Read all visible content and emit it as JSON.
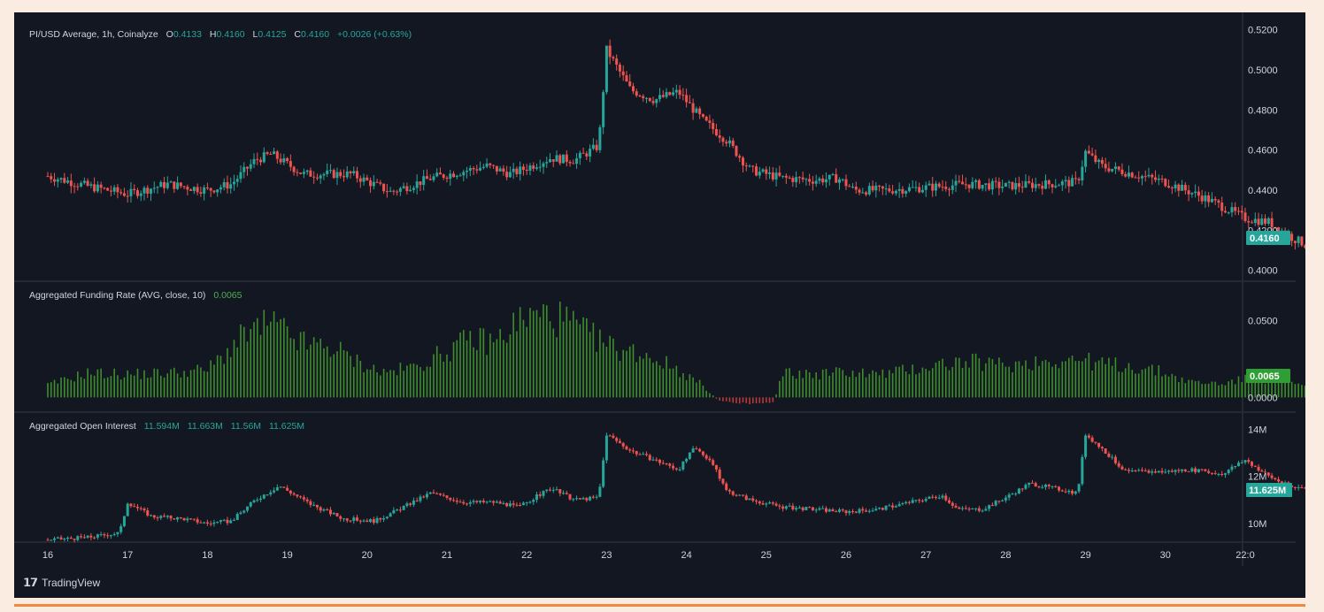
{
  "colors": {
    "up": "#26a69a",
    "down": "#ef5350",
    "funding_up": "#3e8e2c",
    "funding_down": "#b83a3a",
    "last_tag": "#26a69a",
    "funding_tag": "#2e9e35",
    "grid": "#2a2e39",
    "text": "#d1d4dc"
  },
  "brand": {
    "icon": "tradingview-logo-icon",
    "name": "TradingView"
  },
  "chart_data": [
    {
      "type": "candlestick",
      "title": "PI/USD Average, 1h, Coinalyze",
      "ohlc_label": {
        "o_key": "O",
        "o": "0.4133",
        "h_key": "H",
        "h": "0.4160",
        "l_key": "L",
        "l": "0.4125",
        "c_key": "C",
        "c": "0.4160",
        "change": "+0.0026 (+0.63%)"
      },
      "last_value_label": "0.4160",
      "ylim": [
        0.395,
        0.526
      ],
      "y_ticks": [
        "0.5200",
        "0.5000",
        "0.4800",
        "0.4600",
        "0.4400",
        "0.4200",
        "0.4000"
      ],
      "keypoints": [
        [
          0,
          0.447
        ],
        [
          0.5,
          0.442
        ],
        [
          1.0,
          0.438
        ],
        [
          1.5,
          0.443
        ],
        [
          2.0,
          0.44
        ],
        [
          2.3,
          0.443
        ],
        [
          2.6,
          0.455
        ],
        [
          2.8,
          0.458
        ],
        [
          3.2,
          0.448
        ],
        [
          3.8,
          0.448
        ],
        [
          4.3,
          0.439
        ],
        [
          4.8,
          0.446
        ],
        [
          5.5,
          0.452
        ],
        [
          5.8,
          0.448
        ],
        [
          6.3,
          0.456
        ],
        [
          6.6,
          0.455
        ],
        [
          6.9,
          0.462
        ],
        [
          7.0,
          0.51
        ],
        [
          7.3,
          0.49
        ],
        [
          7.6,
          0.485
        ],
        [
          7.9,
          0.489
        ],
        [
          8.2,
          0.475
        ],
        [
          8.5,
          0.465
        ],
        [
          8.8,
          0.45
        ],
        [
          9.2,
          0.446
        ],
        [
          9.6,
          0.445
        ],
        [
          9.9,
          0.446
        ],
        [
          10.1,
          0.44
        ],
        [
          10.5,
          0.44
        ],
        [
          10.9,
          0.441
        ],
        [
          11.5,
          0.443
        ],
        [
          12.0,
          0.442
        ],
        [
          12.5,
          0.443
        ],
        [
          12.9,
          0.444
        ],
        [
          13.0,
          0.459
        ],
        [
          13.2,
          0.452
        ],
        [
          13.6,
          0.448
        ],
        [
          14.0,
          0.444
        ],
        [
          14.5,
          0.436
        ],
        [
          15.0,
          0.426
        ],
        [
          15.3,
          0.424
        ],
        [
          15.6,
          0.416
        ],
        [
          15.75,
          0.413
        ],
        [
          15.8,
          0.416
        ]
      ],
      "x_ticks": [
        "16",
        "17",
        "18",
        "19",
        "20",
        "21",
        "22",
        "23",
        "24",
        "25",
        "26",
        "27",
        "28",
        "29",
        "30",
        "22:0"
      ]
    },
    {
      "type": "bar",
      "title": "Aggregated Funding Rate (AVG, close, 10)",
      "value_label": "0.0065",
      "tag_label": "0.0065",
      "ylim": [
        -0.009,
        0.075
      ],
      "y_ticks": [
        "0.0500",
        "0.0000"
      ],
      "keypoints": [
        [
          0,
          0.008
        ],
        [
          0.5,
          0.016
        ],
        [
          1.0,
          0.015
        ],
        [
          1.5,
          0.016
        ],
        [
          2.0,
          0.018
        ],
        [
          2.5,
          0.042
        ],
        [
          2.8,
          0.048
        ],
        [
          3.2,
          0.035
        ],
        [
          3.6,
          0.032
        ],
        [
          3.8,
          0.025
        ],
        [
          4.2,
          0.016
        ],
        [
          4.6,
          0.02
        ],
        [
          5.0,
          0.03
        ],
        [
          5.3,
          0.038
        ],
        [
          5.6,
          0.036
        ],
        [
          5.9,
          0.05
        ],
        [
          6.2,
          0.054
        ],
        [
          6.5,
          0.05
        ],
        [
          6.8,
          0.04
        ],
        [
          7.1,
          0.032
        ],
        [
          7.5,
          0.028
        ],
        [
          7.9,
          0.018
        ],
        [
          8.2,
          0.008
        ],
        [
          8.4,
          -0.002
        ],
        [
          8.8,
          -0.004
        ],
        [
          9.1,
          -0.003
        ],
        [
          9.2,
          0.016
        ],
        [
          9.6,
          0.015
        ],
        [
          10.0,
          0.017
        ],
        [
          10.4,
          0.015
        ],
        [
          10.8,
          0.018
        ],
        [
          11.2,
          0.022
        ],
        [
          11.6,
          0.023
        ],
        [
          12.0,
          0.021
        ],
        [
          12.5,
          0.024
        ],
        [
          12.9,
          0.025
        ],
        [
          13.2,
          0.022
        ],
        [
          13.6,
          0.02
        ],
        [
          14.0,
          0.016
        ],
        [
          14.3,
          0.01
        ],
        [
          14.7,
          0.009
        ],
        [
          15.0,
          0.012
        ],
        [
          15.4,
          0.011
        ],
        [
          15.8,
          0.0065
        ]
      ]
    },
    {
      "type": "candlestick",
      "title": "Aggregated Open Interest",
      "values_label": [
        "11.594M",
        "11.663M",
        "11.56M",
        "11.625M"
      ],
      "last_value_label": "11.625M",
      "ylim": [
        9.2,
        14.7
      ],
      "y_ticks": [
        "14M",
        "12M",
        "10M"
      ],
      "keypoints": [
        [
          0,
          9.3
        ],
        [
          0.5,
          9.4
        ],
        [
          0.9,
          9.6
        ],
        [
          1.0,
          10.9
        ],
        [
          1.3,
          10.3
        ],
        [
          1.7,
          10.2
        ],
        [
          2.0,
          10.0
        ],
        [
          2.3,
          10.1
        ],
        [
          2.6,
          11.0
        ],
        [
          2.9,
          11.6
        ],
        [
          3.3,
          10.8
        ],
        [
          3.7,
          10.2
        ],
        [
          4.1,
          10.1
        ],
        [
          4.4,
          10.6
        ],
        [
          4.8,
          11.3
        ],
        [
          5.2,
          10.9
        ],
        [
          5.6,
          10.9
        ],
        [
          5.9,
          10.7
        ],
        [
          6.3,
          11.5
        ],
        [
          6.6,
          11.0
        ],
        [
          6.9,
          11.1
        ],
        [
          7.0,
          13.8
        ],
        [
          7.3,
          13.1
        ],
        [
          7.6,
          12.7
        ],
        [
          7.9,
          12.3
        ],
        [
          8.1,
          13.2
        ],
        [
          8.3,
          12.7
        ],
        [
          8.5,
          11.4
        ],
        [
          8.8,
          11.0
        ],
        [
          9.2,
          10.7
        ],
        [
          9.6,
          10.6
        ],
        [
          10.0,
          10.5
        ],
        [
          10.4,
          10.6
        ],
        [
          10.8,
          10.9
        ],
        [
          11.2,
          11.2
        ],
        [
          11.4,
          10.6
        ],
        [
          11.7,
          10.6
        ],
        [
          12.0,
          11.1
        ],
        [
          12.3,
          11.7
        ],
        [
          12.9,
          11.3
        ],
        [
          13.0,
          13.8
        ],
        [
          13.2,
          13.2
        ],
        [
          13.5,
          12.2
        ],
        [
          14.0,
          12.2
        ],
        [
          14.3,
          12.3
        ],
        [
          14.7,
          12.1
        ],
        [
          15.0,
          12.7
        ],
        [
          15.3,
          12.0
        ],
        [
          15.6,
          11.5
        ],
        [
          15.8,
          11.6
        ]
      ]
    }
  ]
}
